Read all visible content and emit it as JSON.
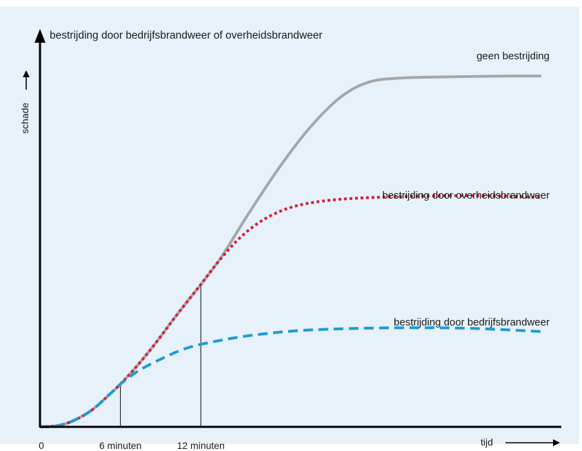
{
  "chart_data": {
    "type": "line",
    "title": "bestrijding door bedrijfsbrandweer of overheidsbrandweer",
    "xlabel": "tijd",
    "ylabel": "schade",
    "x_tick_labels": [
      "0",
      "6 minuten",
      "12 minuten"
    ],
    "x_ticks": [
      0,
      6,
      12
    ],
    "xlim": [
      0,
      39
    ],
    "ylim": [
      0,
      100
    ],
    "grid": false,
    "axis_arrows": true,
    "background_color": "#e6f1f9",
    "series": [
      {
        "name": "geen bestrijding",
        "color": "#a6a6a6",
        "style": "solid",
        "points": [
          [
            0,
            0
          ],
          [
            1.3,
            0.3
          ],
          [
            2.5,
            1.6
          ],
          [
            3.9,
            4.4
          ],
          [
            5.3,
            8.7
          ],
          [
            6,
            11
          ],
          [
            7.2,
            15.5
          ],
          [
            8.6,
            21.4
          ],
          [
            10.1,
            28.3
          ],
          [
            11.7,
            35.3
          ],
          [
            12,
            36.6
          ],
          [
            13.6,
            44
          ],
          [
            15.5,
            54.5
          ],
          [
            17.9,
            66.9
          ],
          [
            20.1,
            76.8
          ],
          [
            22.4,
            84.7
          ],
          [
            24.5,
            88.6
          ],
          [
            26.9,
            89.7
          ],
          [
            30.5,
            90
          ],
          [
            35,
            90.2
          ],
          [
            37.4,
            90.2
          ]
        ]
      },
      {
        "name": "bestrijding door overheidsbrandweer",
        "color": "#d21f35",
        "style": "dotted",
        "points": [
          [
            0,
            0
          ],
          [
            1.3,
            0.3
          ],
          [
            2.5,
            1.6
          ],
          [
            3.9,
            4.4
          ],
          [
            5.3,
            8.7
          ],
          [
            6,
            11
          ],
          [
            7.2,
            15.5
          ],
          [
            8.6,
            21.4
          ],
          [
            10.1,
            28.3
          ],
          [
            11.7,
            35.3
          ],
          [
            12,
            36.6
          ],
          [
            13.6,
            43.7
          ],
          [
            15.3,
            49.8
          ],
          [
            17.1,
            54.1
          ],
          [
            19.1,
            56.8
          ],
          [
            21.7,
            58.3
          ],
          [
            25,
            59
          ],
          [
            29.6,
            59.4
          ],
          [
            33.7,
            59.4
          ],
          [
            37.4,
            59
          ]
        ]
      },
      {
        "name": "bestrijding door bedrijfsbrandweer",
        "color": "#1e9ad6",
        "style": "dashed",
        "points": [
          [
            0,
            0
          ],
          [
            1.3,
            0.3
          ],
          [
            2.5,
            1.6
          ],
          [
            3.9,
            4.4
          ],
          [
            5.3,
            8.7
          ],
          [
            6,
            11
          ],
          [
            7.3,
            14.3
          ],
          [
            9,
            17.4
          ],
          [
            11.1,
            20.4
          ],
          [
            13.7,
            22.4
          ],
          [
            16.4,
            23.8
          ],
          [
            19.6,
            24.8
          ],
          [
            23.5,
            25.3
          ],
          [
            27.9,
            25.5
          ],
          [
            32.4,
            25.3
          ],
          [
            37.4,
            24.5
          ]
        ]
      }
    ],
    "reference_lines": [
      {
        "x": 6,
        "from_y": 0,
        "to_y": 11
      },
      {
        "x": 12,
        "from_y": 0,
        "to_y": 36.6
      }
    ]
  }
}
